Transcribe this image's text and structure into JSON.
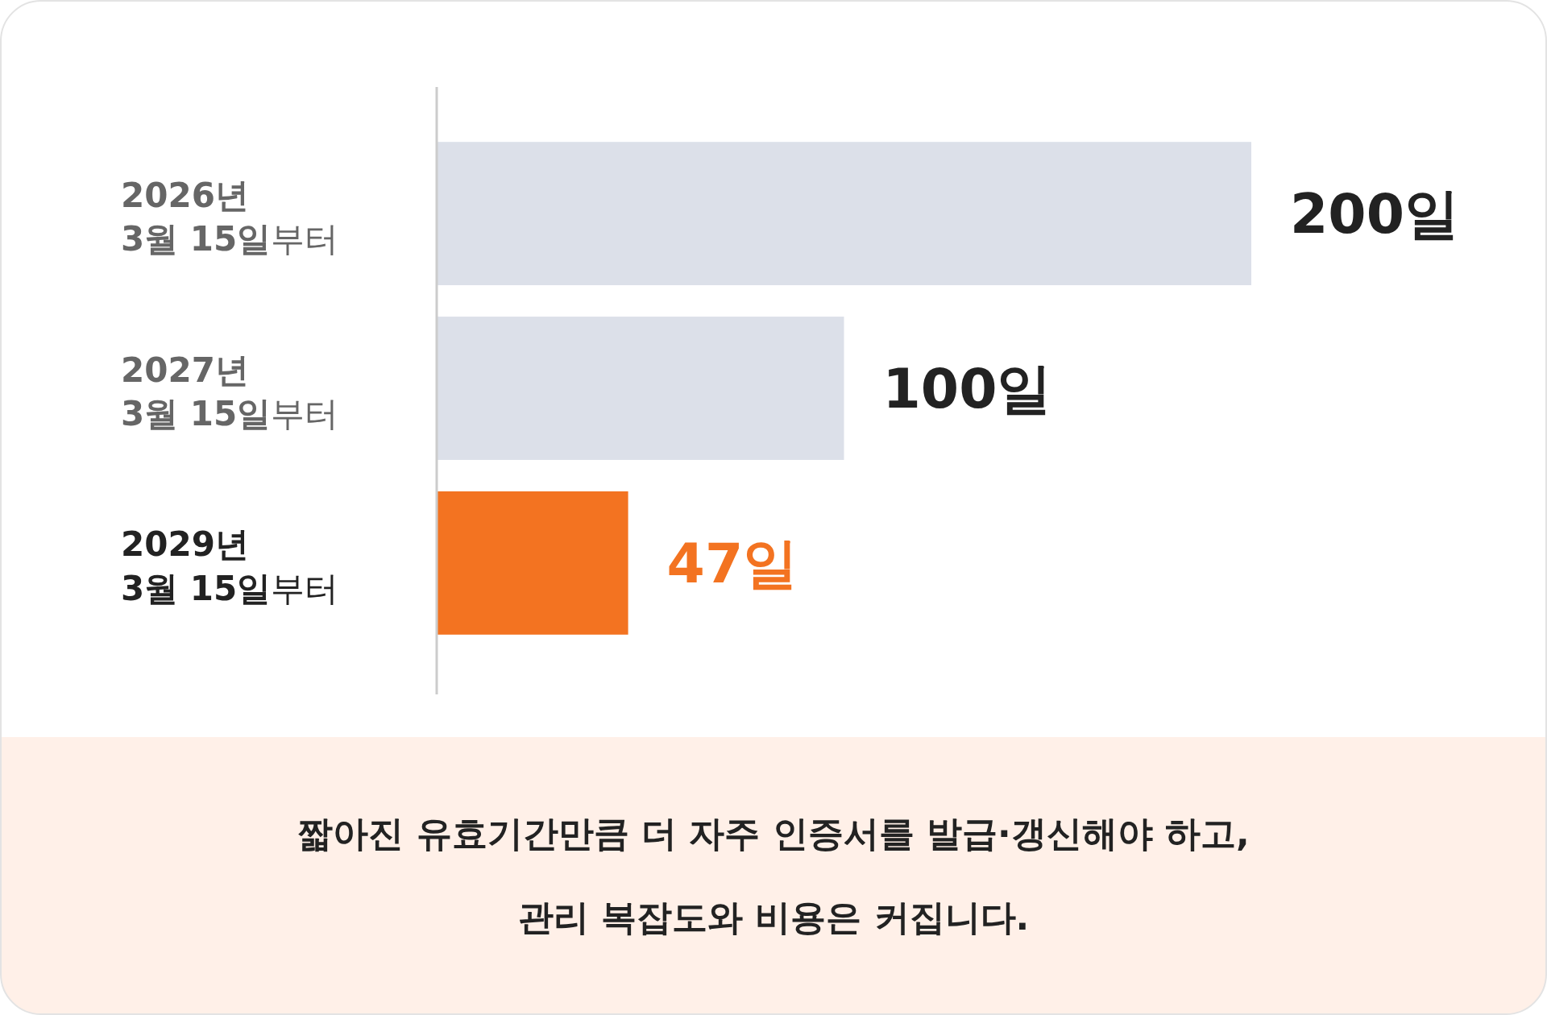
{
  "chart_data": {
    "type": "bar",
    "orientation": "horizontal",
    "categories": [
      "2026년 3월 15일부터",
      "2027년 3월 15일부터",
      "2029년 3월 15일부터"
    ],
    "values": [
      200,
      100,
      47
    ],
    "colors": [
      "#dce0e9",
      "#dce0e9",
      "#f37321"
    ],
    "value_labels": [
      "200일",
      "100일",
      "47일"
    ],
    "annotations": [
      "짧아진 유효기간만큼 더 자주 인증서를 발급·갱신해야 하고,",
      "관리 복잡도와 비용은 커집니다."
    ]
  }
}
